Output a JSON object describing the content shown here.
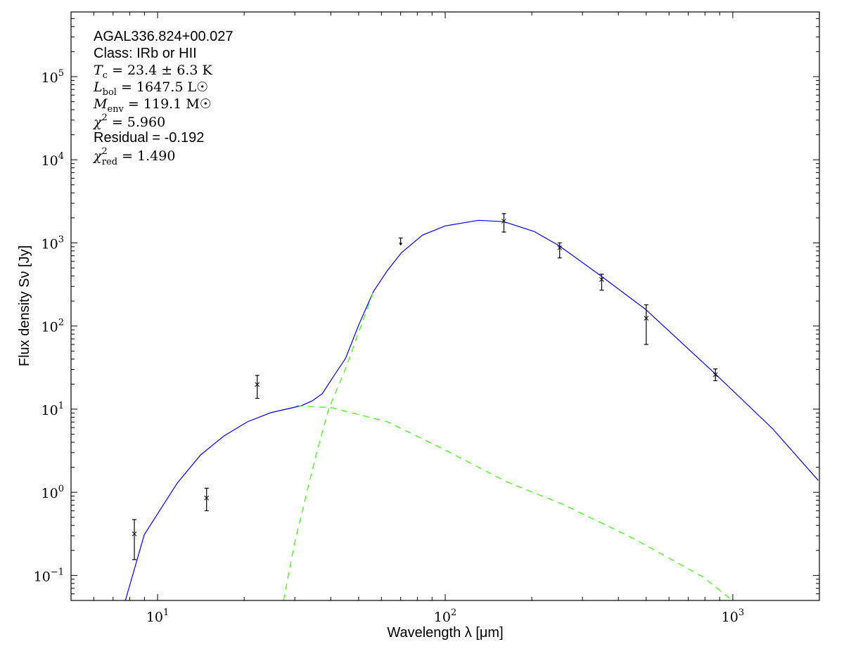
{
  "chart_data": {
    "type": "line",
    "xlabel": "Wavelength λ [μm]",
    "ylabel": "Flux density Sν [Jy]",
    "xscale": "log",
    "yscale": "log",
    "xlim": [
      5,
      2000
    ],
    "ylim": [
      0.05,
      600000
    ],
    "x_ticks": [
      {
        "base": "10",
        "exp": "1",
        "value": 10
      },
      {
        "base": "10",
        "exp": "2",
        "value": 100
      },
      {
        "base": "10",
        "exp": "3",
        "value": 1000
      }
    ],
    "y_ticks": [
      {
        "base": "10",
        "exp": "−1",
        "value": 0.1
      },
      {
        "base": "10",
        "exp": "0",
        "value": 1
      },
      {
        "base": "10",
        "exp": "1",
        "value": 10
      },
      {
        "base": "10",
        "exp": "2",
        "value": 100
      },
      {
        "base": "10",
        "exp": "3",
        "value": 1000
      },
      {
        "base": "10",
        "exp": "4",
        "value": 10000
      },
      {
        "base": "10",
        "exp": "5",
        "value": 100000
      }
    ],
    "annotations": [
      {
        "kind": "plain",
        "text": "AGAL336.824+00.027"
      },
      {
        "kind": "plain",
        "text": "Class: IRb or HII"
      },
      {
        "kind": "math",
        "sym": "T",
        "sub": "c",
        "sup": "",
        "rest": " = 23.4 ± 6.3 K"
      },
      {
        "kind": "math",
        "sym": "L",
        "sub": "bol",
        "sup": "",
        "rest": " = 1647.5 L☉"
      },
      {
        "kind": "math",
        "sym": "M",
        "sub": "env",
        "sup": "",
        "rest": " = 119.1 M☉"
      },
      {
        "kind": "math",
        "sym": "χ",
        "sub": "",
        "sup": "2",
        "rest": " = 5.960"
      },
      {
        "kind": "plain",
        "text": "Residual = -0.192"
      },
      {
        "kind": "math",
        "sym": "χ",
        "sub": "red",
        "sup": "2",
        "rest": " = 1.490"
      }
    ],
    "measurements": [
      {
        "x": 8.3,
        "y": 0.316,
        "lo": 0.155,
        "hi": 0.47
      },
      {
        "x": 14.8,
        "y": 0.855,
        "lo": 0.6,
        "hi": 1.12
      },
      {
        "x": 22.2,
        "y": 19.8,
        "lo": 13.5,
        "hi": 25.5
      },
      {
        "x": 160,
        "y": 1830,
        "lo": 1350,
        "hi": 2250
      },
      {
        "x": 250,
        "y": 873,
        "lo": 660,
        "hi": 1000
      },
      {
        "x": 350,
        "y": 363,
        "lo": 270,
        "hi": 420
      },
      {
        "x": 500,
        "y": 124,
        "lo": 60,
        "hi": 180
      },
      {
        "x": 870,
        "y": 26,
        "lo": 22,
        "hi": 30.5
      }
    ],
    "upper_limits": [
      {
        "x": 70,
        "y": 1060
      }
    ],
    "series": [
      {
        "name": "total model",
        "style": "solid",
        "color": "#0000ff",
        "points": [
          [
            7.73,
            0.0505
          ],
          [
            8.99,
            0.31
          ],
          [
            11.7,
            1.29
          ],
          [
            14.1,
            2.81
          ],
          [
            17.0,
            4.76
          ],
          [
            20.5,
            7.03
          ],
          [
            24.7,
            9.07
          ],
          [
            31.6,
            11.0
          ],
          [
            34.5,
            12.6
          ],
          [
            37.4,
            15.4
          ],
          [
            40.2,
            22.7
          ],
          [
            45.0,
            40.7
          ],
          [
            50.3,
            108
          ],
          [
            56.3,
            260
          ],
          [
            63.0,
            467
          ],
          [
            70.4,
            761
          ],
          [
            83.3,
            1240
          ],
          [
            100,
            1600
          ],
          [
            130.5,
            1870
          ],
          [
            160,
            1800
          ],
          [
            204,
            1370
          ],
          [
            249,
            925
          ],
          [
            348,
            400
          ],
          [
            496,
            160
          ],
          [
            859,
            27.6
          ],
          [
            1377,
            5.79
          ],
          [
            1982,
            1.39
          ]
        ]
      },
      {
        "name": "warm component",
        "style": "dashed",
        "color": "#33ff00",
        "points": [
          [
            30.4,
            11.0
          ],
          [
            40.2,
            10.4
          ],
          [
            63.0,
            7.03
          ],
          [
            100,
            3.22
          ],
          [
            163,
            1.34
          ],
          [
            256,
            0.718
          ],
          [
            449,
            0.281
          ],
          [
            786,
            0.0962
          ],
          [
            1000,
            0.0496
          ]
        ]
      },
      {
        "name": "cold component",
        "style": "dashed",
        "color": "#33ff00",
        "points": [
          [
            27.4,
            0.0496
          ],
          [
            29.9,
            0.24
          ],
          [
            32.7,
            0.872
          ],
          [
            35.9,
            3.22
          ],
          [
            39.5,
            10.4
          ],
          [
            45.0,
            30.4
          ],
          [
            50.3,
            89
          ],
          [
            56.3,
            260
          ]
        ]
      }
    ]
  }
}
